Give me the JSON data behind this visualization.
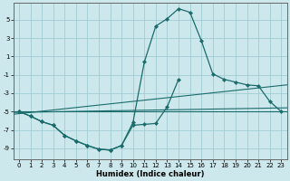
{
  "xlabel": "Humidex (Indice chaleur)",
  "xlim": [
    -0.5,
    23.5
  ],
  "ylim": [
    -10.2,
    6.8
  ],
  "yticks": [
    -9,
    -7,
    -5,
    -3,
    -1,
    1,
    3,
    5
  ],
  "xticks": [
    0,
    1,
    2,
    3,
    4,
    5,
    6,
    7,
    8,
    9,
    10,
    11,
    12,
    13,
    14,
    15,
    16,
    17,
    18,
    19,
    20,
    21,
    22,
    23
  ],
  "bg_color": "#cde8ec",
  "grid_color": "#a0cdd4",
  "line_color": "#1a6b6b",
  "curve_x": [
    0,
    1,
    2,
    3,
    4,
    5,
    6,
    7,
    8,
    9,
    10,
    11,
    12,
    13,
    14,
    15,
    16,
    17,
    18,
    19,
    20,
    21,
    22,
    23
  ],
  "curve_y": [
    -5.0,
    -5.5,
    -6.1,
    -6.5,
    -7.6,
    -8.2,
    -8.7,
    -9.1,
    -9.2,
    -8.7,
    -6.2,
    0.4,
    4.3,
    5.1,
    6.2,
    5.8,
    2.7,
    -0.9,
    -1.5,
    -1.8,
    -2.1,
    -2.2,
    -3.9,
    -5.0
  ],
  "lower_x": [
    0,
    1,
    2,
    3,
    4,
    5,
    6,
    7,
    8,
    9,
    10,
    11,
    12,
    13,
    14
  ],
  "lower_y": [
    -5.0,
    -5.5,
    -6.1,
    -6.5,
    -7.6,
    -8.2,
    -8.7,
    -9.1,
    -9.2,
    -8.7,
    -6.5,
    -6.4,
    -6.3,
    -4.5,
    -1.5
  ],
  "flat_line": [
    [
      -0.5,
      23.5
    ],
    [
      -5.0,
      -5.0
    ]
  ],
  "slope_line1": [
    [
      -0.5,
      23.5
    ],
    [
      -5.3,
      -2.1
    ]
  ],
  "slope_line2": [
    [
      -0.5,
      23.5
    ],
    [
      -5.1,
      -4.6
    ]
  ]
}
